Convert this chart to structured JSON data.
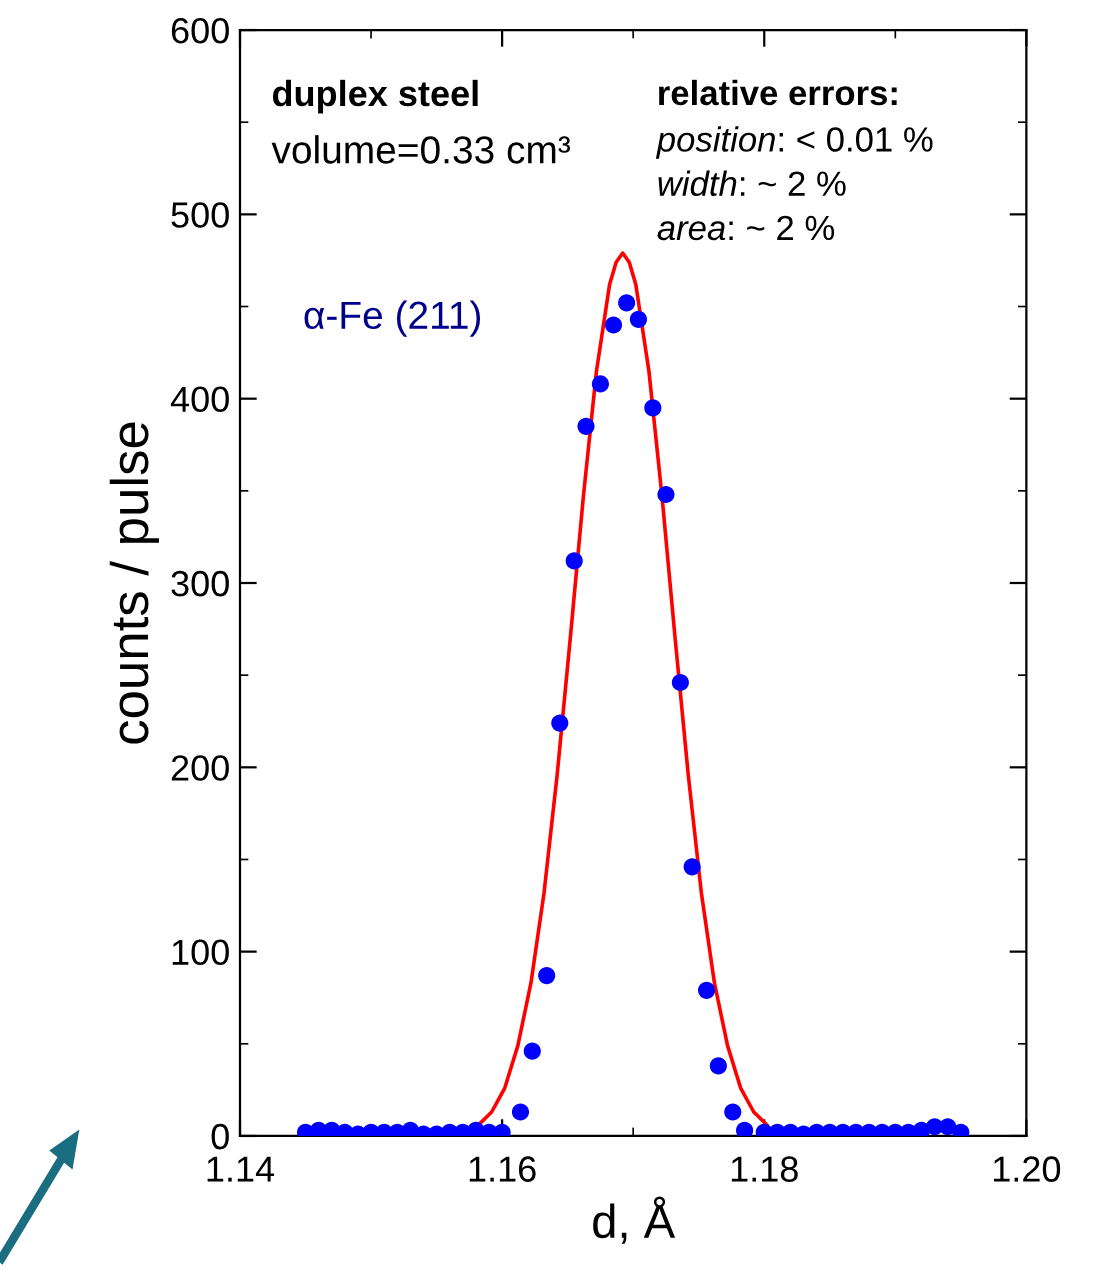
{
  "chart_data": {
    "type": "scatter",
    "xlabel": "d, Å",
    "ylabel": "counts / pulse",
    "xlim": [
      1.14,
      1.2
    ],
    "xticks": [
      {
        "value": 1.14,
        "label": "1.14"
      },
      {
        "value": 1.16,
        "label": "1.16"
      },
      {
        "value": 1.18,
        "label": "1.18"
      },
      {
        "value": 1.2,
        "label": "1.20"
      }
    ],
    "ylim": [
      0,
      600
    ],
    "yticks": [
      0,
      100,
      200,
      300,
      400,
      500,
      600
    ],
    "grid": false,
    "legend": false,
    "annotations": [
      "duplex steel",
      "volume=0.33 cm³",
      "relative errors:",
      "position: < 0.01 %",
      "width: ~ 2 %",
      "area: ~ 2 %"
    ],
    "series": [
      {
        "name": "α-Fe (211)",
        "marker": "circle",
        "color": "#0000ff",
        "x": [
          1.145,
          1.146,
          1.147,
          1.148,
          1.149,
          1.15,
          1.151,
          1.152,
          1.153,
          1.154,
          1.155,
          1.156,
          1.157,
          1.158,
          1.159,
          1.16,
          1.1614,
          1.1623,
          1.1634,
          1.1644,
          1.1655,
          1.1664,
          1.1675,
          1.1685,
          1.1695,
          1.1704,
          1.1715,
          1.1725,
          1.1736,
          1.1745,
          1.1756,
          1.1765,
          1.1776,
          1.1785,
          1.18,
          1.181,
          1.182,
          1.183,
          1.184,
          1.185,
          1.186,
          1.187,
          1.188,
          1.189,
          1.19,
          1.191,
          1.192,
          1.193,
          1.194,
          1.195
        ],
        "values": [
          2,
          3,
          3,
          2,
          1,
          2,
          2,
          2,
          3,
          1,
          1,
          2,
          2,
          3,
          2,
          2,
          13,
          46,
          87,
          224,
          312,
          385,
          408,
          440,
          452,
          443,
          395,
          348,
          246,
          146,
          79,
          38,
          13,
          3,
          2,
          2,
          2,
          1,
          2,
          2,
          2,
          2,
          2,
          2,
          2,
          2,
          3,
          5,
          5,
          2
        ]
      },
      {
        "type": "line",
        "color": "#ff0000",
        "x": [
          1.1582,
          1.1592,
          1.1602,
          1.1612,
          1.1622,
          1.1632,
          1.1642,
          1.1652,
          1.1662,
          1.1672,
          1.1682,
          1.1687,
          1.1692,
          1.1697,
          1.1702,
          1.1712,
          1.1722,
          1.1732,
          1.1742,
          1.1752,
          1.1762,
          1.1772,
          1.1782,
          1.1792,
          1.1802
        ],
        "values": [
          6,
          13,
          26,
          49,
          83,
          132,
          196,
          270,
          347,
          415,
          462,
          474,
          479,
          474,
          462,
          415,
          347,
          270,
          196,
          132,
          83,
          49,
          26,
          13,
          6
        ]
      }
    ]
  }
}
